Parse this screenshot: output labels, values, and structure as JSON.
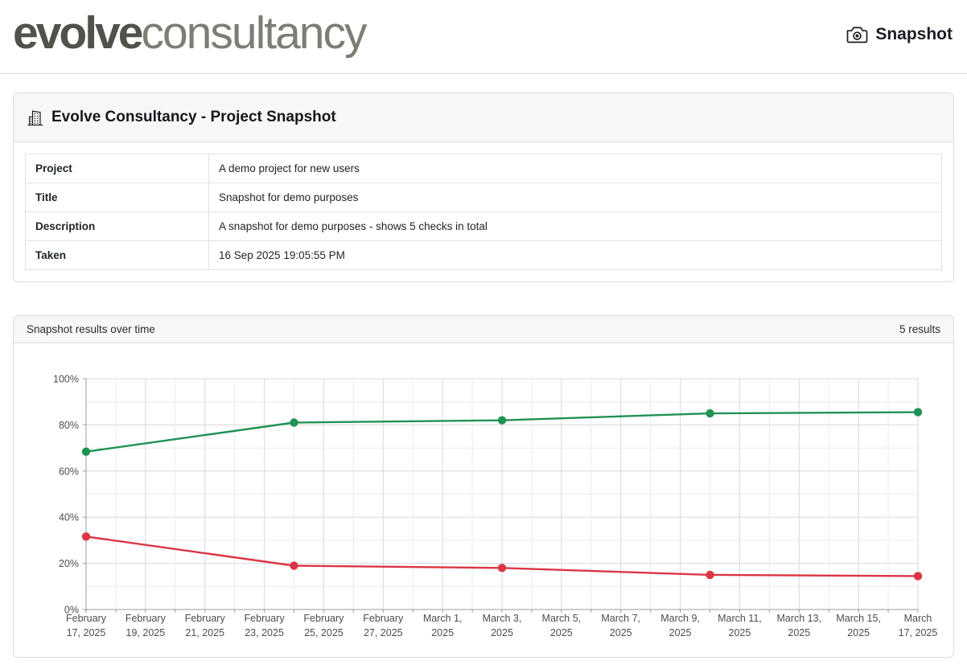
{
  "header": {
    "logo_primary": "evolve",
    "logo_secondary": "consultancy",
    "snapshot_label": "Snapshot"
  },
  "brand_colors": {
    "logo_primary": "#50524b",
    "logo_secondary": "#7c7e76"
  },
  "project_card": {
    "title": "Evolve Consultancy - Project Snapshot",
    "rows": [
      {
        "label": "Project",
        "value": "A demo project for new users"
      },
      {
        "label": "Title",
        "value": "Snapshot for demo purposes"
      },
      {
        "label": "Description",
        "value": "A snapshot for demo purposes - shows 5 checks in total"
      },
      {
        "label": "Taken",
        "value": "16 Sep 2025 19:05:55 PM"
      }
    ]
  },
  "results_card": {
    "title": "Snapshot results over time",
    "count": "5 results"
  },
  "chart_data": {
    "type": "line",
    "title": "Snapshot results over time",
    "x_dates": [
      "February 17, 2025",
      "February 24, 2025",
      "March 3, 2025",
      "March 10, 2025",
      "March 17, 2025"
    ],
    "x_day_offsets": [
      0,
      7,
      14,
      21,
      28
    ],
    "x_total_days": 28,
    "series": [
      {
        "name": "green-series",
        "color": "#1f9254",
        "values": [
          68.4,
          81,
          82,
          85,
          85.5
        ]
      },
      {
        "name": "red-series",
        "color": "#dc3545",
        "values": [
          31.6,
          19,
          18,
          15,
          14.5
        ]
      }
    ],
    "ylim": [
      0,
      100
    ],
    "y_grid_step": 10,
    "y_label_step": 20,
    "y_tick_labels": [
      "0%",
      "20%",
      "40%",
      "60%",
      "80%",
      "100%"
    ],
    "x_axis_ticks": [
      {
        "day": 0,
        "line1": "February",
        "line2": "17, 2025"
      },
      {
        "day": 2,
        "line1": "February",
        "line2": "19, 2025"
      },
      {
        "day": 4,
        "line1": "February",
        "line2": "21, 2025"
      },
      {
        "day": 6,
        "line1": "February",
        "line2": "23, 2025"
      },
      {
        "day": 8,
        "line1": "February",
        "line2": "25, 2025"
      },
      {
        "day": 10,
        "line1": "February",
        "line2": "27, 2025"
      },
      {
        "day": 12,
        "line1": "March 1,",
        "line2": "2025"
      },
      {
        "day": 14,
        "line1": "March 3,",
        "line2": "2025"
      },
      {
        "day": 16,
        "line1": "March 5,",
        "line2": "2025"
      },
      {
        "day": 18,
        "line1": "March 7,",
        "line2": "2025"
      },
      {
        "day": 20,
        "line1": "March 9,",
        "line2": "2025"
      },
      {
        "day": 22,
        "line1": "March 11,",
        "line2": "2025"
      },
      {
        "day": 24,
        "line1": "March 13,",
        "line2": "2025"
      },
      {
        "day": 26,
        "line1": "March 15,",
        "line2": "2025"
      },
      {
        "day": 28,
        "line1": "March",
        "line2": "17, 2025"
      }
    ],
    "grid": true,
    "legend_position": "none",
    "grid_minor_color": "#ececec",
    "grid_major_color": "#d9d9d9",
    "axis_color": "#9b9b9b",
    "axis_label_color": "#4d4d4d"
  }
}
